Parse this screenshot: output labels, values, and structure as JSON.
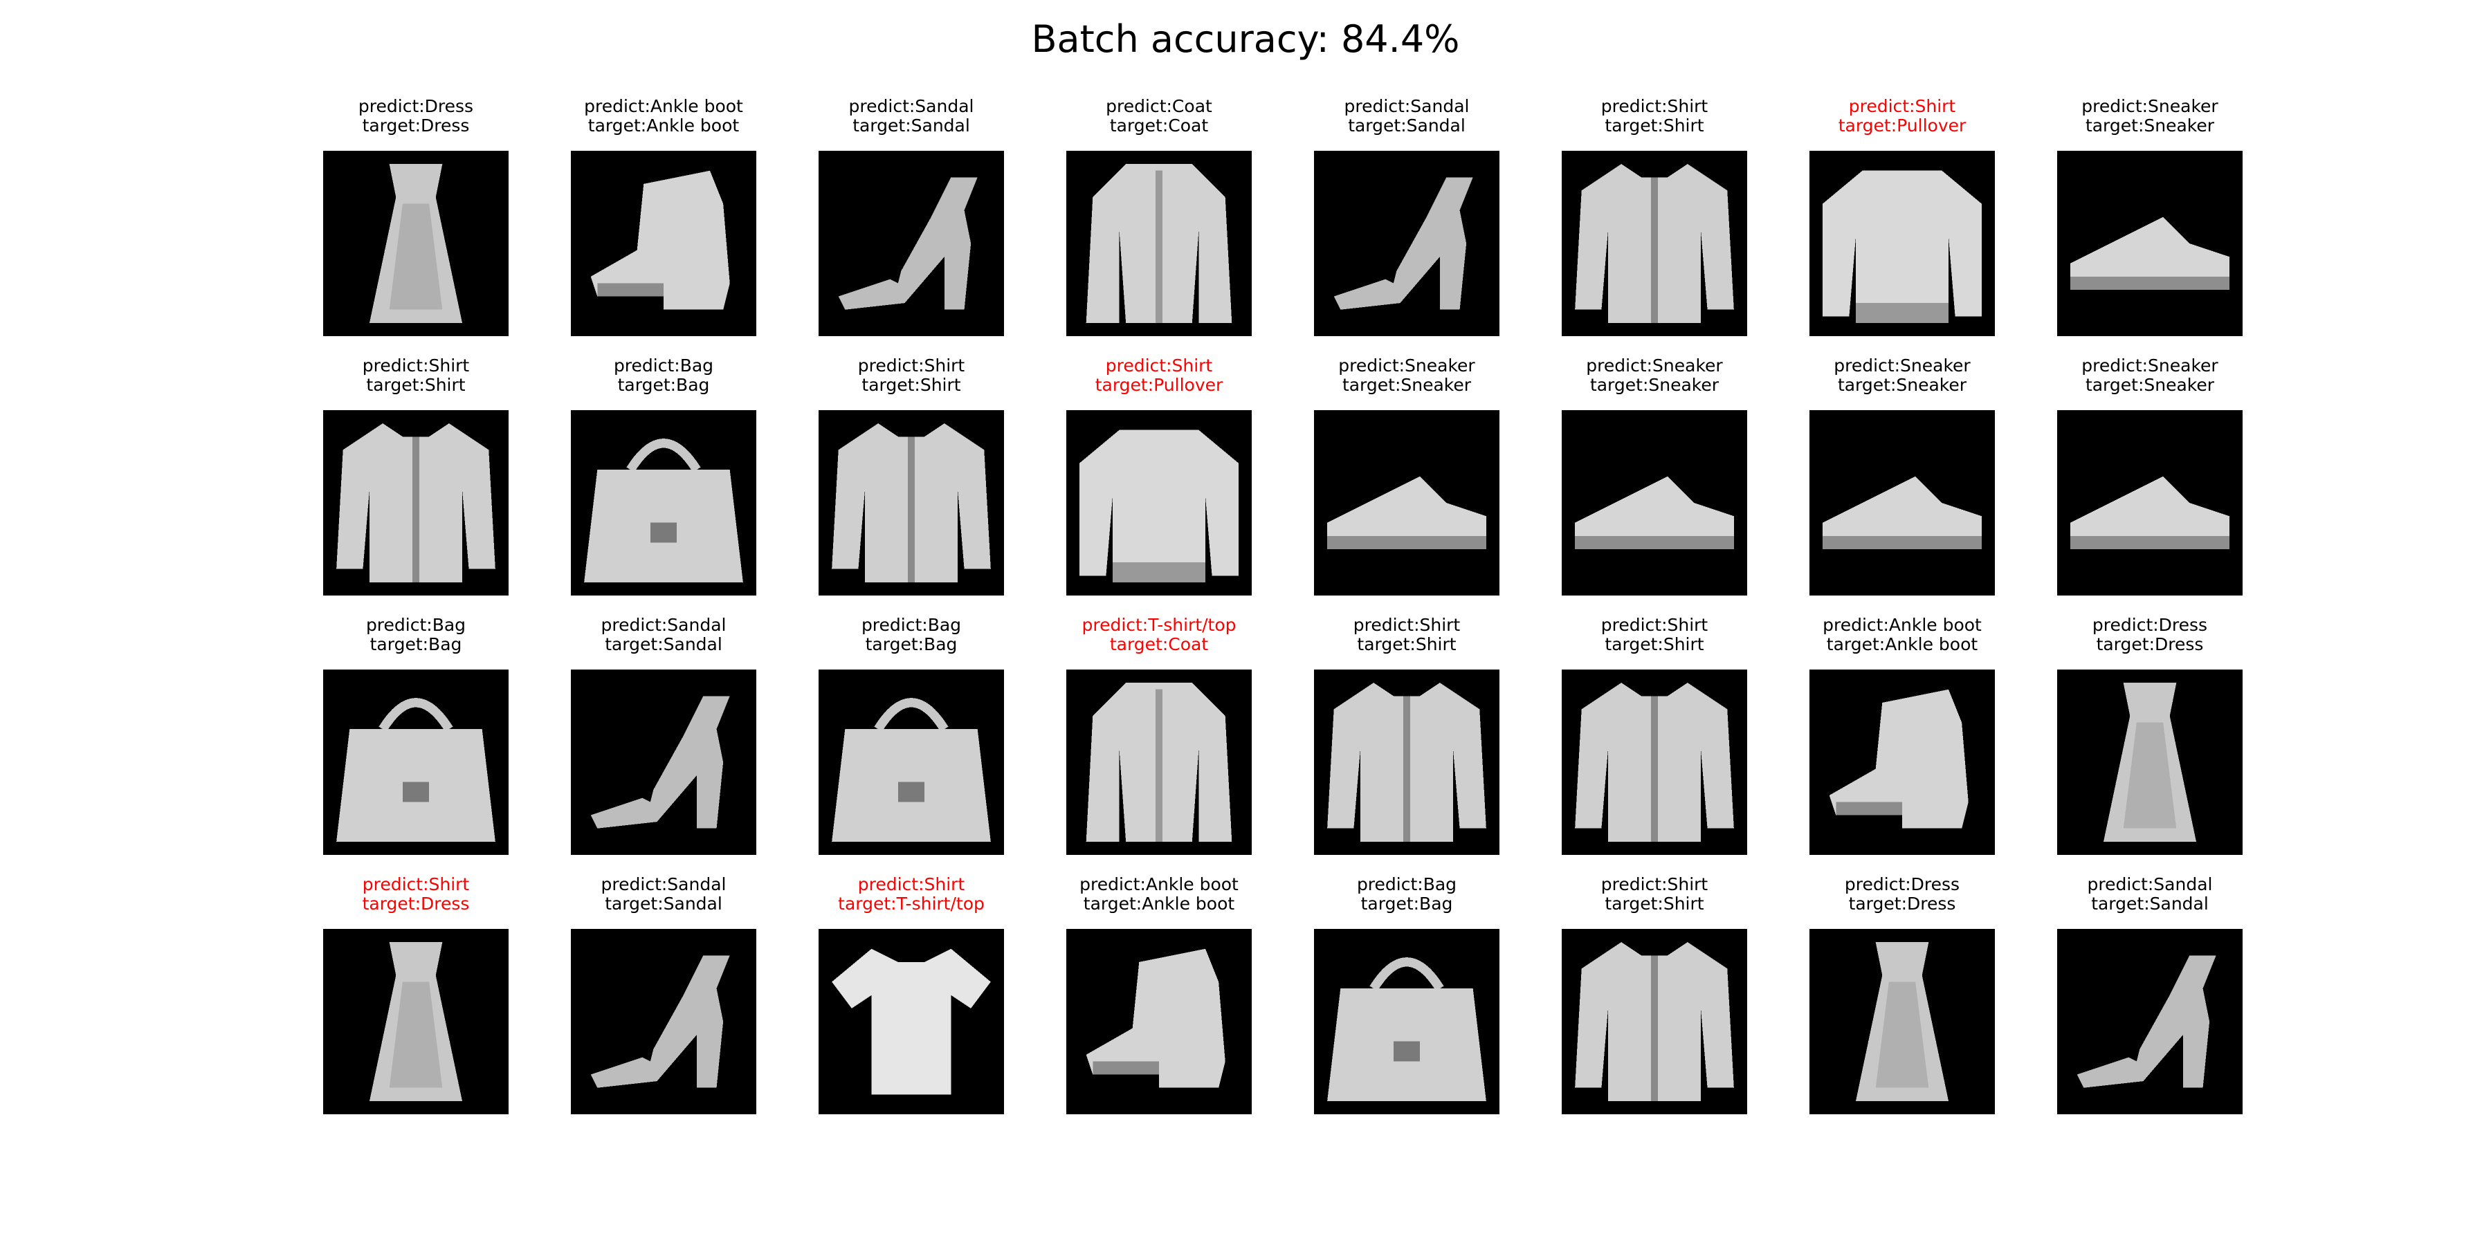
{
  "title": "Batch accuracy: 84.4%",
  "colors": {
    "correct": "#000000",
    "wrong": "#ff0000",
    "image_background": "#000000"
  },
  "panels": [
    {
      "predict": "predict:Dress",
      "target": "target:Dress",
      "correct": true,
      "item": "dress"
    },
    {
      "predict": "predict:Ankle boot",
      "target": "target:Ankle boot",
      "correct": true,
      "item": "ankle-boot"
    },
    {
      "predict": "predict:Sandal",
      "target": "target:Sandal",
      "correct": true,
      "item": "sandal"
    },
    {
      "predict": "predict:Coat",
      "target": "target:Coat",
      "correct": true,
      "item": "coat"
    },
    {
      "predict": "predict:Sandal",
      "target": "target:Sandal",
      "correct": true,
      "item": "sandal"
    },
    {
      "predict": "predict:Shirt",
      "target": "target:Shirt",
      "correct": true,
      "item": "shirt"
    },
    {
      "predict": "predict:Shirt",
      "target": "target:Pullover",
      "correct": false,
      "item": "pullover"
    },
    {
      "predict": "predict:Sneaker",
      "target": "target:Sneaker",
      "correct": true,
      "item": "sneaker"
    },
    {
      "predict": "predict:Shirt",
      "target": "target:Shirt",
      "correct": true,
      "item": "shirt"
    },
    {
      "predict": "predict:Bag",
      "target": "target:Bag",
      "correct": true,
      "item": "bag"
    },
    {
      "predict": "predict:Shirt",
      "target": "target:Shirt",
      "correct": true,
      "item": "shirt"
    },
    {
      "predict": "predict:Shirt",
      "target": "target:Pullover",
      "correct": false,
      "item": "pullover"
    },
    {
      "predict": "predict:Sneaker",
      "target": "target:Sneaker",
      "correct": true,
      "item": "sneaker"
    },
    {
      "predict": "predict:Sneaker",
      "target": "target:Sneaker",
      "correct": true,
      "item": "sneaker"
    },
    {
      "predict": "predict:Sneaker",
      "target": "target:Sneaker",
      "correct": true,
      "item": "sneaker"
    },
    {
      "predict": "predict:Sneaker",
      "target": "target:Sneaker",
      "correct": true,
      "item": "sneaker"
    },
    {
      "predict": "predict:Bag",
      "target": "target:Bag",
      "correct": true,
      "item": "bag"
    },
    {
      "predict": "predict:Sandal",
      "target": "target:Sandal",
      "correct": true,
      "item": "sandal"
    },
    {
      "predict": "predict:Bag",
      "target": "target:Bag",
      "correct": true,
      "item": "bag"
    },
    {
      "predict": "predict:T-shirt/top",
      "target": "target:Coat",
      "correct": false,
      "item": "coat"
    },
    {
      "predict": "predict:Shirt",
      "target": "target:Shirt",
      "correct": true,
      "item": "shirt"
    },
    {
      "predict": "predict:Shirt",
      "target": "target:Shirt",
      "correct": true,
      "item": "shirt"
    },
    {
      "predict": "predict:Ankle boot",
      "target": "target:Ankle boot",
      "correct": true,
      "item": "ankle-boot"
    },
    {
      "predict": "predict:Dress",
      "target": "target:Dress",
      "correct": true,
      "item": "dress"
    },
    {
      "predict": "predict:Shirt",
      "target": "target:Dress",
      "correct": false,
      "item": "dress"
    },
    {
      "predict": "predict:Sandal",
      "target": "target:Sandal",
      "correct": true,
      "item": "sandal"
    },
    {
      "predict": "predict:Shirt",
      "target": "target:T-shirt/top",
      "correct": false,
      "item": "t-shirt"
    },
    {
      "predict": "predict:Ankle boot",
      "target": "target:Ankle boot",
      "correct": true,
      "item": "ankle-boot"
    },
    {
      "predict": "predict:Bag",
      "target": "target:Bag",
      "correct": true,
      "item": "bag"
    },
    {
      "predict": "predict:Shirt",
      "target": "target:Shirt",
      "correct": true,
      "item": "shirt"
    },
    {
      "predict": "predict:Dress",
      "target": "target:Dress",
      "correct": true,
      "item": "dress"
    },
    {
      "predict": "predict:Sandal",
      "target": "target:Sandal",
      "correct": true,
      "item": "sandal"
    }
  ]
}
